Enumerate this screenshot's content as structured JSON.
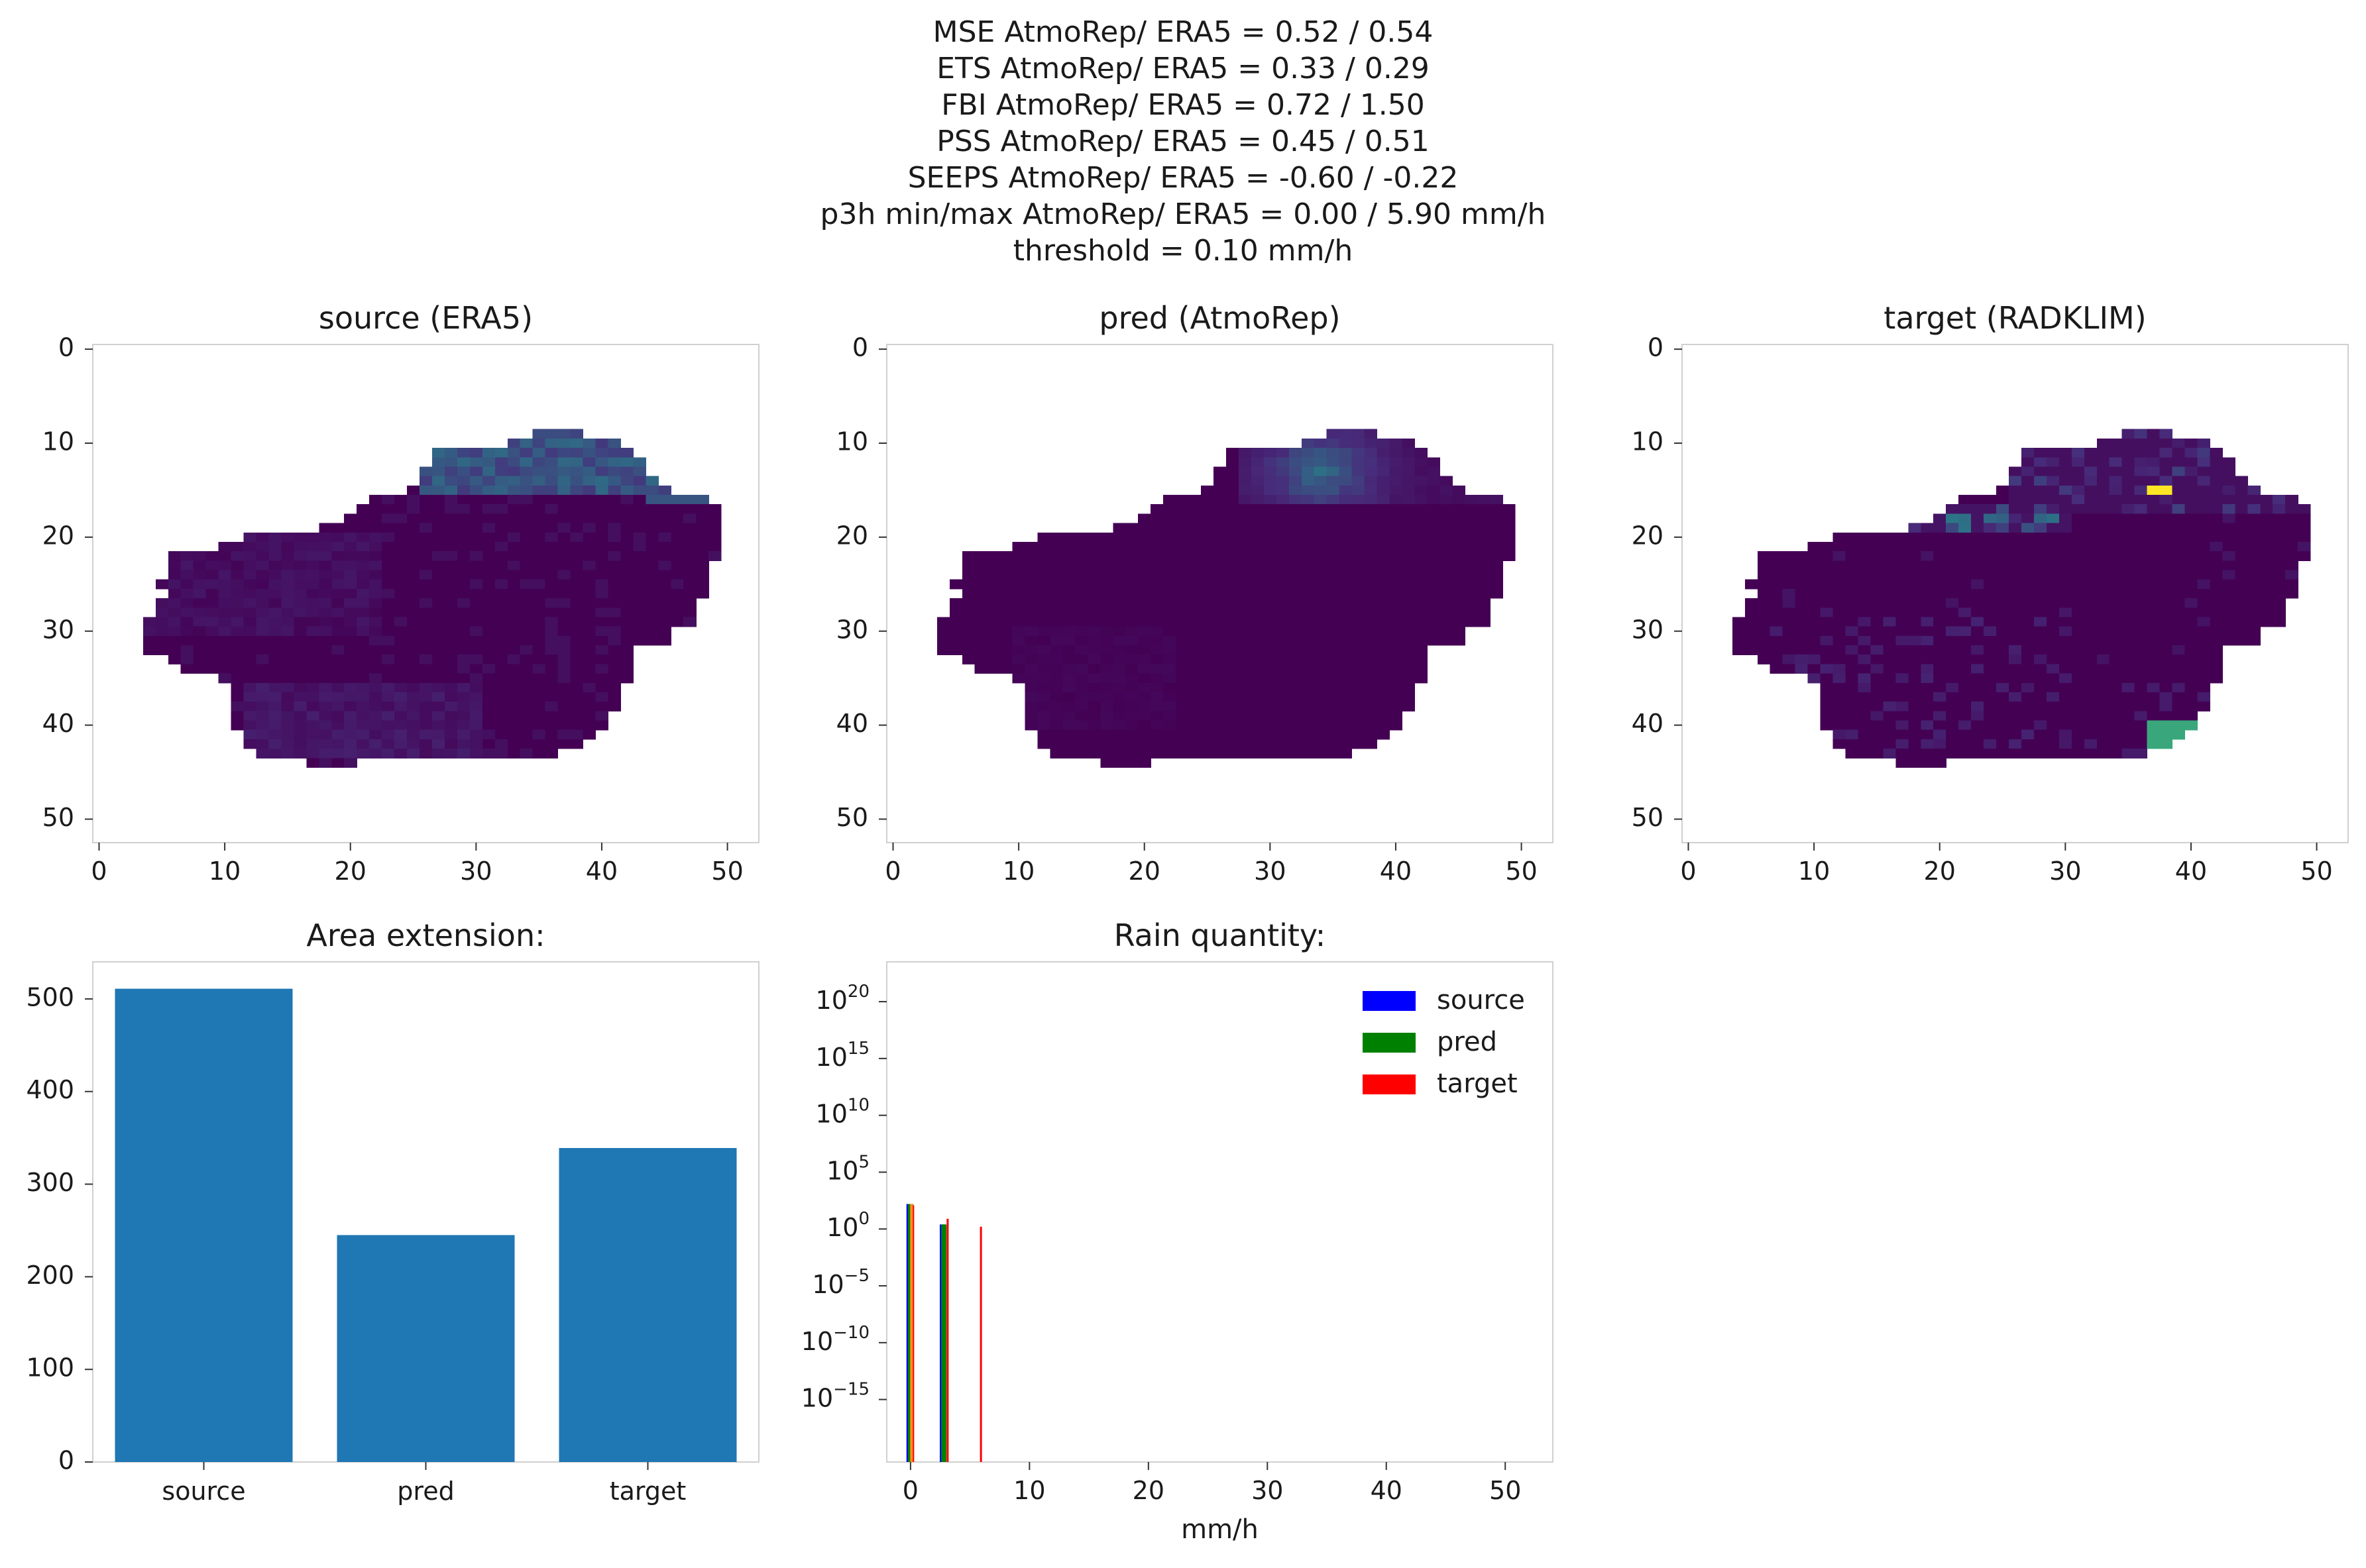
{
  "figure": {
    "suptitle_lines": [
      "MSE AtmoRep/ ERA5 = 0.52 / 0.54",
      "ETS AtmoRep/ ERA5 = 0.33 / 0.29",
      "FBI AtmoRep/ ERA5 = 0.72 / 1.50",
      "PSS AtmoRep/ ERA5 = 0.45 / 0.51",
      "SEEPS AtmoRep/ ERA5 = -0.60 / -0.22",
      "p3h min/max AtmoRep/ ERA5 = 0.00 / 5.90 mm/h",
      "threshold = 0.10 mm/h"
    ]
  },
  "colors": {
    "viridis_min": "#440154",
    "viridis_low": "#472d7b",
    "viridis_mid": "#21918c",
    "viridis_high": "#5ec962",
    "viridis_max": "#fde725",
    "bar": "#1f77b4",
    "source": "#0000ff",
    "pred": "#008000",
    "target": "#ff0000",
    "spine": "#d0d0d0"
  },
  "chart_data": [
    {
      "type": "heatmap",
      "title": "source (ERA5)",
      "xlim": [
        0,
        53
      ],
      "ylim": [
        53,
        0
      ],
      "xticks": [
        "0",
        "10",
        "20",
        "30",
        "40",
        "50"
      ],
      "yticks": [
        "0",
        "10",
        "20",
        "30",
        "40",
        "50"
      ],
      "grid": false,
      "colormap": "viridis"
    },
    {
      "type": "heatmap",
      "title": "pred (AtmoRep)",
      "xlim": [
        0,
        53
      ],
      "ylim": [
        53,
        0
      ],
      "xticks": [
        "0",
        "10",
        "20",
        "30",
        "40",
        "50"
      ],
      "yticks": [
        "0",
        "10",
        "20",
        "30",
        "40",
        "50"
      ],
      "grid": false,
      "colormap": "viridis"
    },
    {
      "type": "heatmap",
      "title": "target (RADKLIM)",
      "xlim": [
        0,
        53
      ],
      "ylim": [
        53,
        0
      ],
      "xticks": [
        "0",
        "10",
        "20",
        "30",
        "40",
        "50"
      ],
      "yticks": [
        "0",
        "10",
        "20",
        "30",
        "40",
        "50"
      ],
      "grid": false,
      "colormap": "viridis"
    },
    {
      "type": "bar",
      "title": "Area extension:",
      "categories": [
        "source",
        "pred",
        "target"
      ],
      "values": [
        511,
        245,
        339
      ],
      "ylim": [
        0,
        540
      ],
      "yticks": [
        "0",
        "100",
        "200",
        "300",
        "400",
        "500"
      ],
      "grid": false
    },
    {
      "type": "bar",
      "title": "Rain quantity:",
      "xlabel": "mm/h",
      "xlim": [
        -2,
        54
      ],
      "xticks": [
        "0",
        "10",
        "20",
        "30",
        "40",
        "50"
      ],
      "yscale": "log",
      "ytick_exponents": [
        "20",
        "15",
        "10",
        "5",
        "0",
        "-5",
        "-10",
        "-15"
      ],
      "yrange_exp": [
        -20.5,
        23.5
      ],
      "legend": [
        "source",
        "pred",
        "target"
      ],
      "legend_position": "top-right",
      "grid": false,
      "series": [
        {
          "name": "source",
          "bins": [
            {
              "x": 0.0,
              "exp": 2.2
            },
            {
              "x": 2.8,
              "exp": 0.4
            }
          ]
        },
        {
          "name": "pred",
          "bins": [
            {
              "x": 0.0,
              "exp": 2.2
            },
            {
              "x": 2.8,
              "exp": 0.4
            }
          ]
        },
        {
          "name": "target",
          "bins": [
            {
              "x": 0.1,
              "exp": 2.1
            },
            {
              "x": 3.0,
              "exp": 0.9
            },
            {
              "x": 5.8,
              "exp": 0.2
            }
          ]
        }
      ]
    }
  ]
}
